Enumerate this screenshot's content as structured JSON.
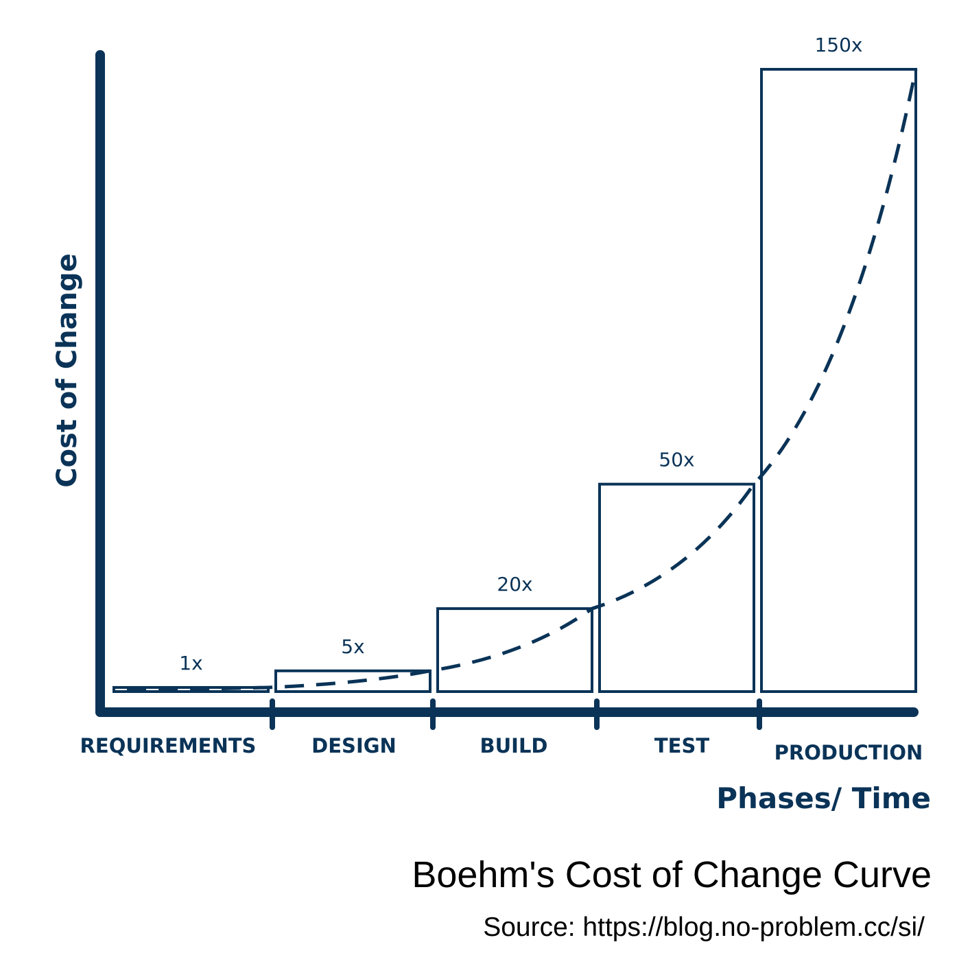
{
  "chart_data": {
    "type": "bar",
    "title": "Boehm's Cost of Change Curve",
    "source": "Source: https://blog.no-problem.cc/si/",
    "xlabel": "Phases/ Time",
    "ylabel": "Cost of Change",
    "categories": [
      "REQUIREMENTS",
      "DESIGN",
      "BUILD",
      "TEST",
      "PRODUCTION"
    ],
    "values": [
      1,
      5,
      20,
      50,
      150
    ],
    "value_labels": [
      "1x",
      "5x",
      "20x",
      "50x",
      "150x"
    ],
    "ylim": [
      0,
      150
    ],
    "grid": false,
    "trend_line": "dashed",
    "color": "#0a3357"
  }
}
